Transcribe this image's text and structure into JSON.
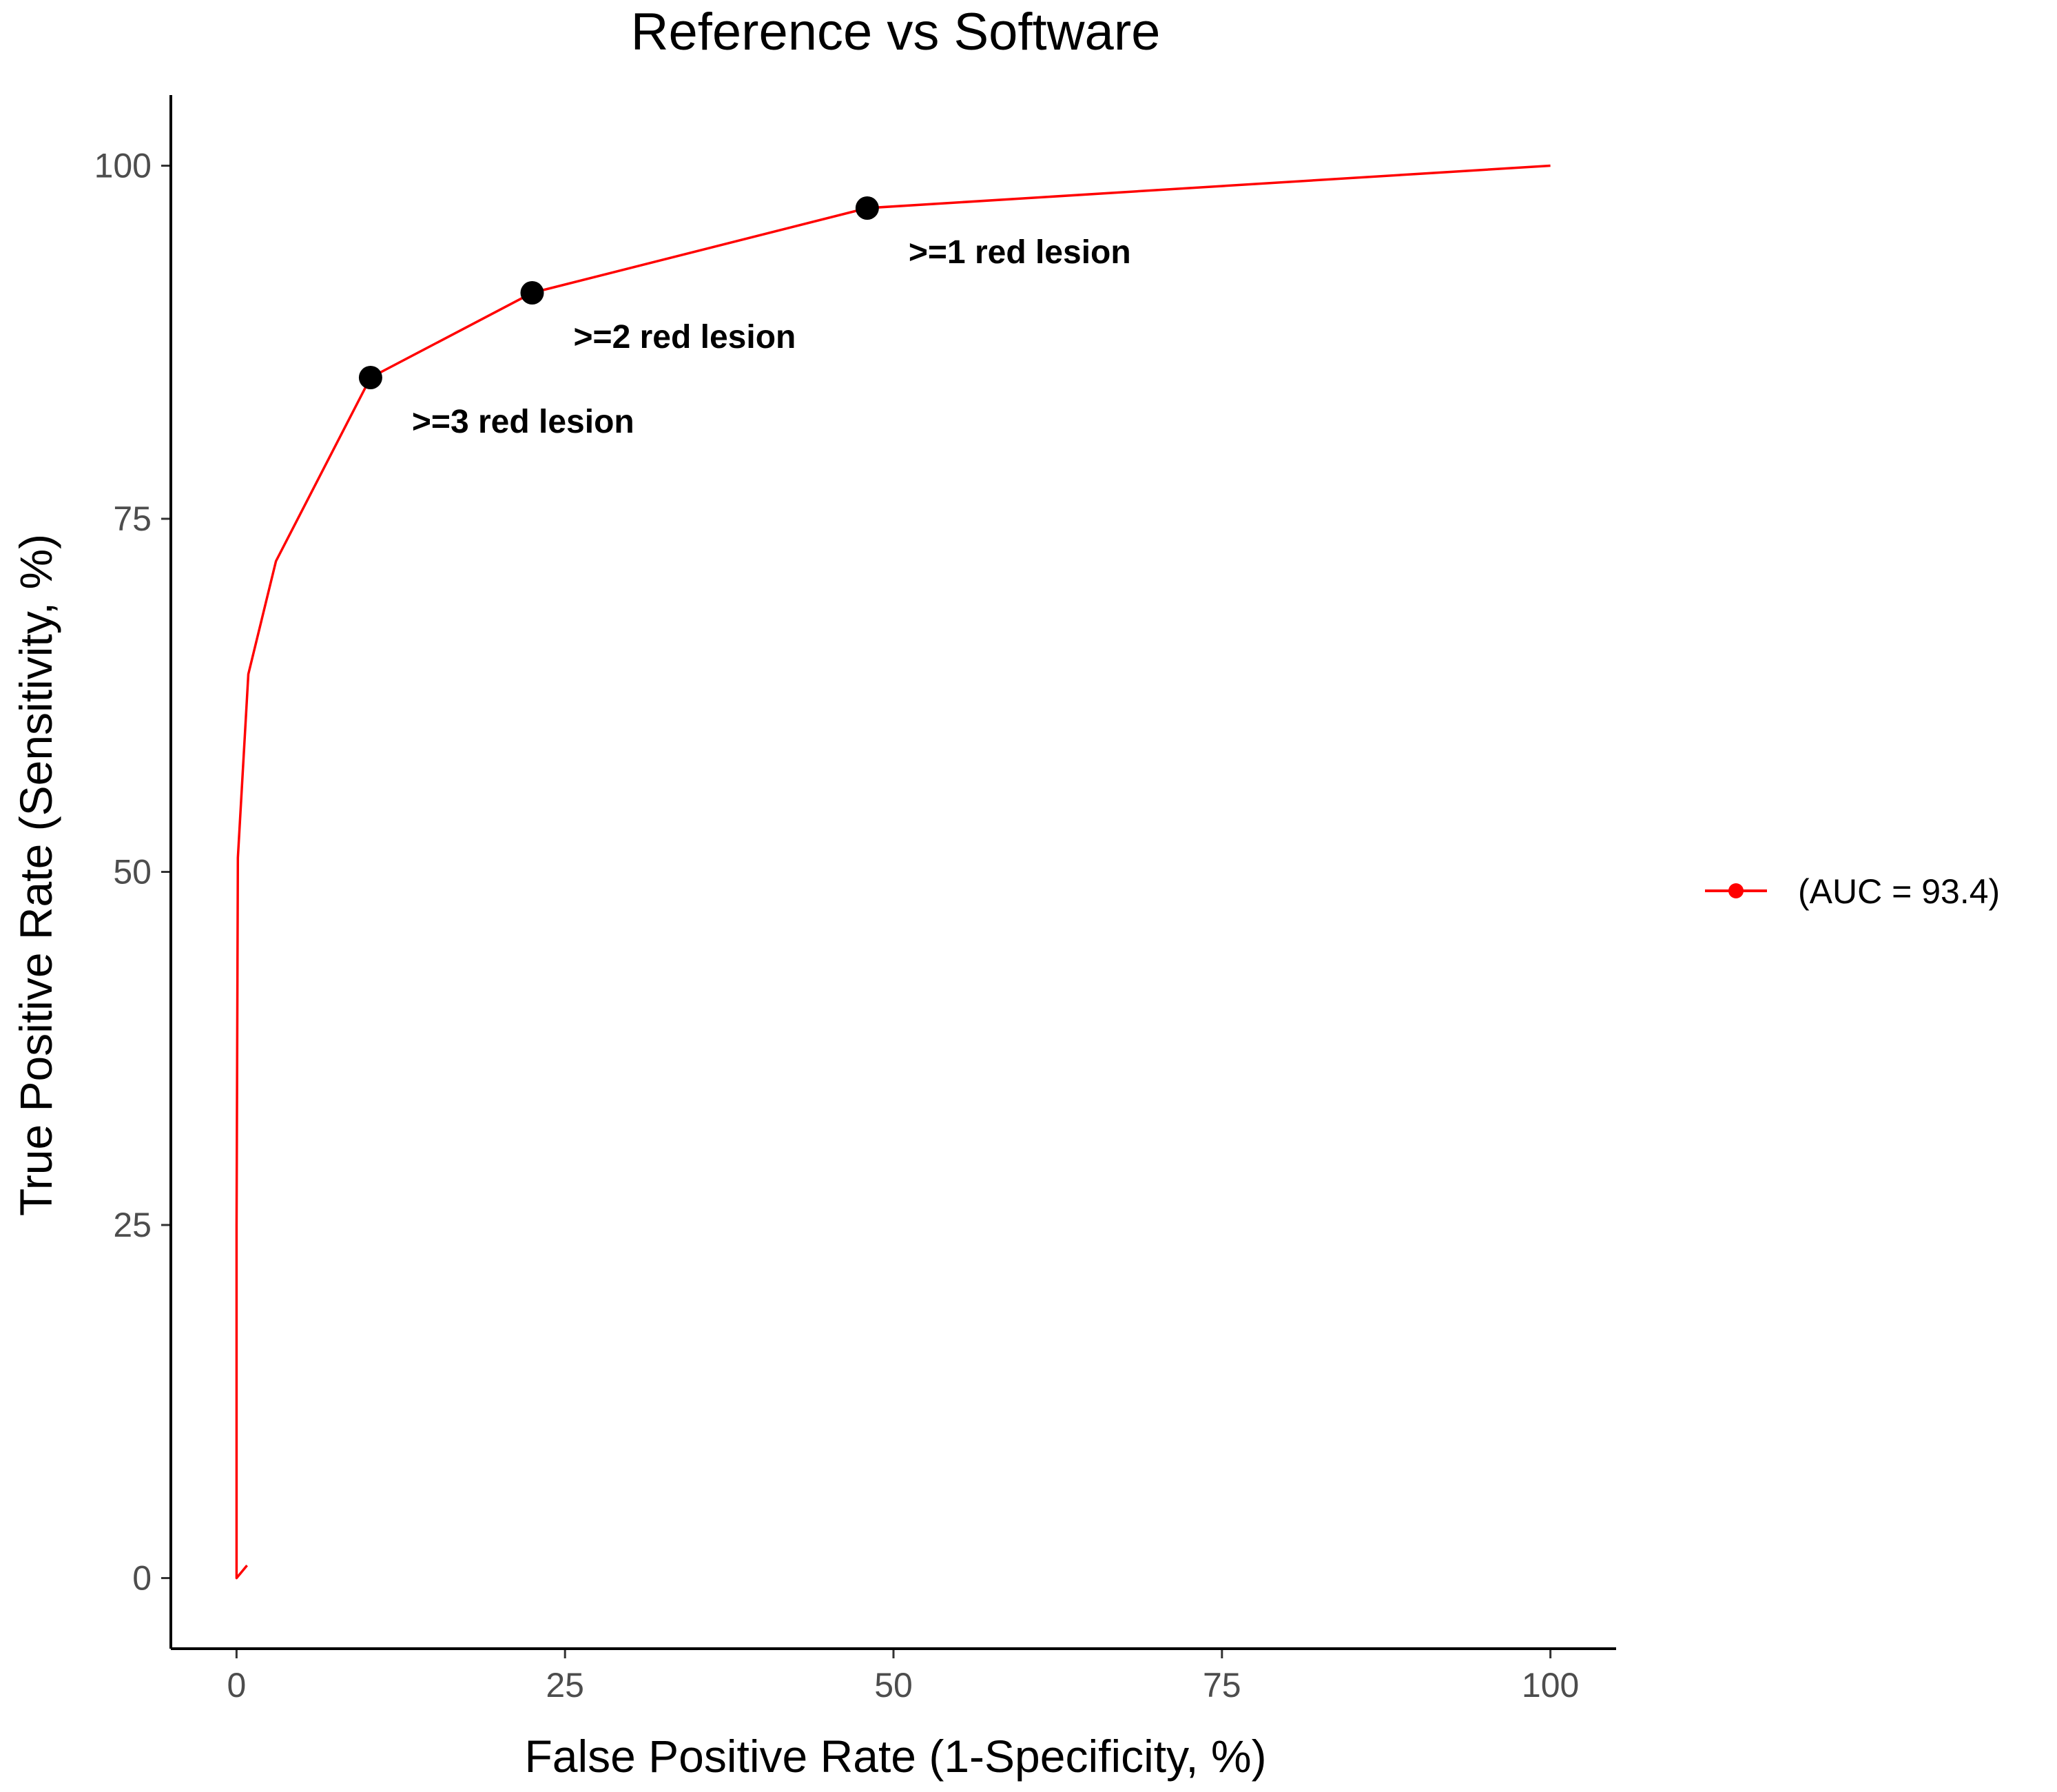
{
  "chart_data": {
    "type": "line",
    "title": "Reference vs Software",
    "xlabel": "False Positive Rate (1-Specificity, %)",
    "ylabel": "True Positive Rate (Sensitivity, %)",
    "xlim": [
      -5,
      105
    ],
    "ylim": [
      -5,
      105
    ],
    "xticks": [
      0,
      25,
      50,
      75,
      100
    ],
    "yticks": [
      0,
      25,
      50,
      75,
      100
    ],
    "grid": false,
    "legend_position": "right",
    "colors": {
      "line": "#ff0000",
      "point": "#000000",
      "axis": "#000000",
      "tick_text": "#4d4d4d"
    },
    "series": [
      {
        "name": "(AUC = 93.4)",
        "x": [
          0.8,
          0.0,
          0.0,
          0.1,
          0.9,
          3.0,
          10.2,
          22.5,
          48.0,
          100.0
        ],
        "y": [
          0.9,
          0.0,
          25.0,
          51.0,
          64.0,
          72.0,
          85.0,
          91.0,
          97.0,
          100.0
        ]
      }
    ],
    "highlighted_points": [
      {
        "x": 10.2,
        "y": 85.0,
        "label": ">=3 red lesion"
      },
      {
        "x": 22.5,
        "y": 91.0,
        "label": ">=2 red lesion"
      },
      {
        "x": 48.0,
        "y": 97.0,
        "label": ">=1 red lesion"
      }
    ]
  }
}
